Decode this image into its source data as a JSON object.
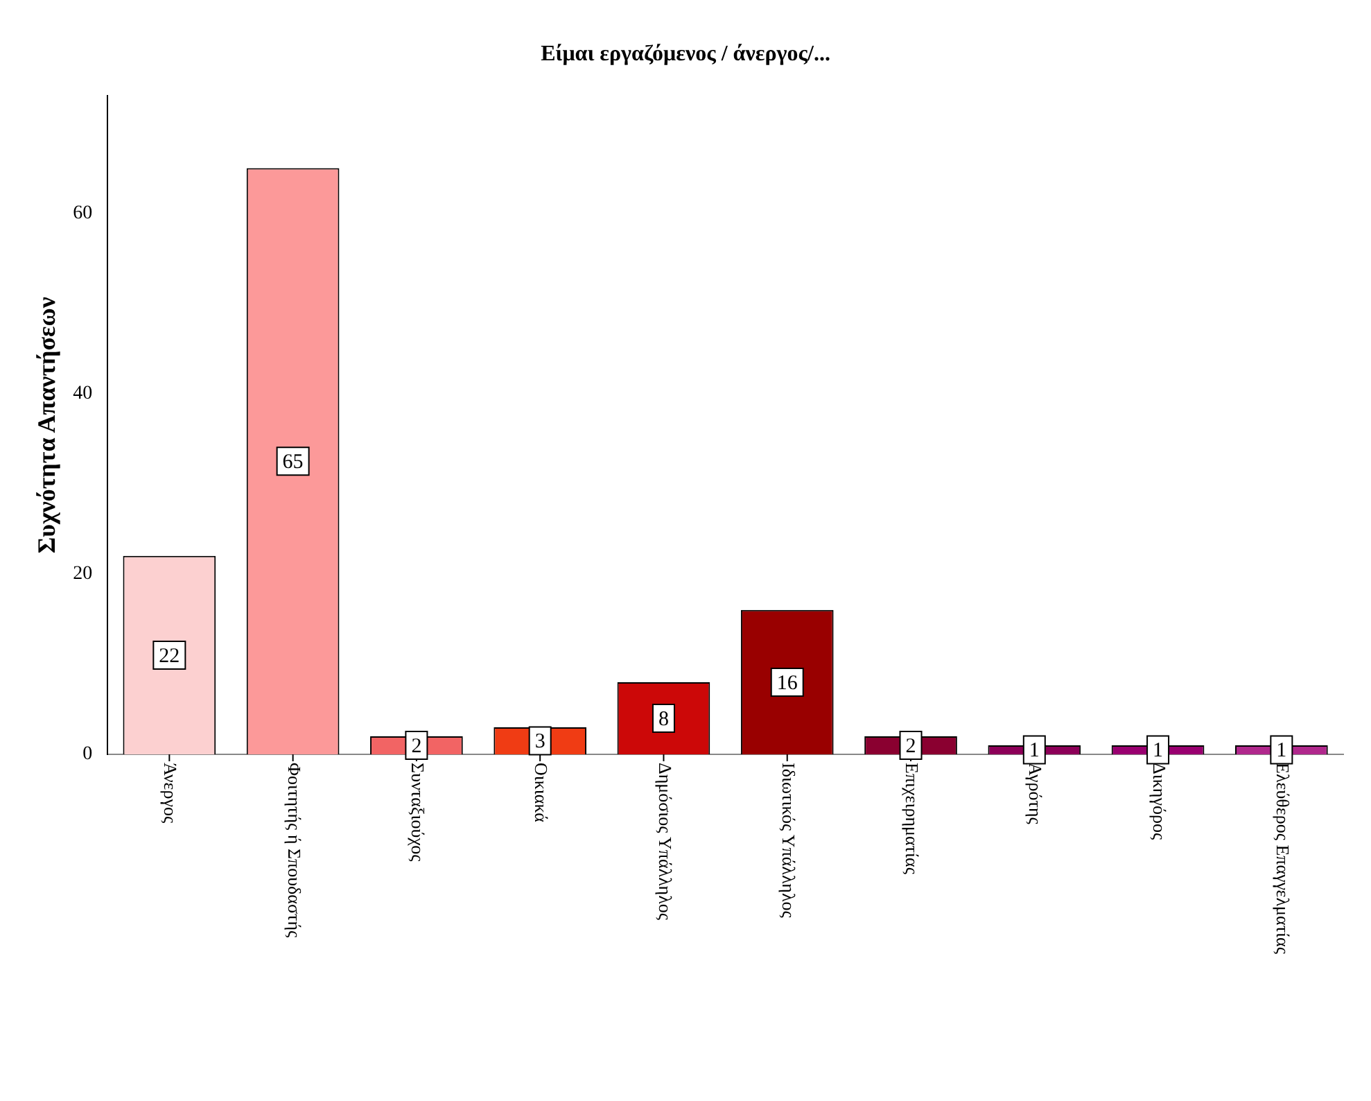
{
  "chart_data": {
    "type": "bar",
    "title": "Είμαι εργαζόμενος / άνεργος/...",
    "ylabel": "Συχνότητα Απαντήσεων",
    "categories": [
      "Άνεργος",
      "Φοιτητής ή Σπουδαστής",
      "Συνταξιούχος",
      "Οικιακά",
      "Δημόσιος Υπάλληλος",
      "Ιδιωτικός Υπάλληλος",
      "Επιχειρηματίας",
      "Αγρότης",
      "Δικηγόρος",
      "Ελεύθερος Επαγγελματίας"
    ],
    "values": [
      22,
      65,
      2,
      3,
      8,
      16,
      2,
      1,
      1,
      1
    ],
    "colors": [
      "#fcd0d0",
      "#fc9999",
      "#f26464",
      "#f03c14",
      "#cc0808",
      "#990000",
      "#8a0030",
      "#8c0058",
      "#990070",
      "#b0288c"
    ],
    "ylim": [
      0,
      73
    ],
    "yticks": [
      0,
      20,
      40,
      60
    ],
    "grid": false,
    "legend": false,
    "data_labels": true
  }
}
